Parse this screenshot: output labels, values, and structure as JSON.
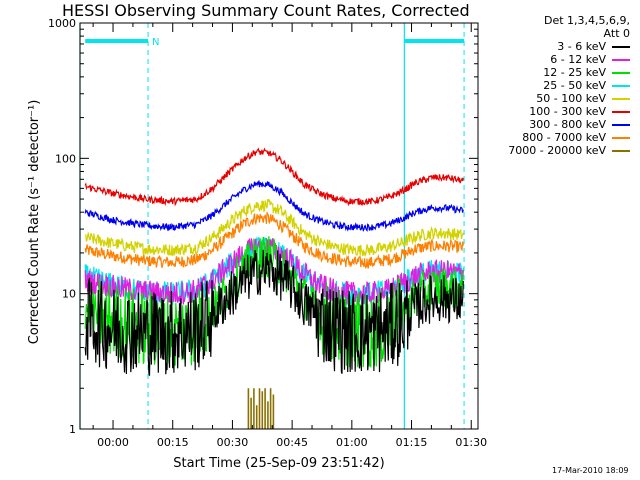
{
  "title": "HESSI Observing Summary Count Rates, Corrected",
  "timestamp": "17-Mar-2010 18:09",
  "legend": {
    "header_lines": [
      "Det 1,3,4,5,6,9,",
      "Att 0"
    ],
    "entries": [
      {
        "label": "3 - 6 keV",
        "color": "#000000"
      },
      {
        "label": "6 - 12 keV",
        "color": "#e020e0"
      },
      {
        "label": "12 - 25 keV",
        "color": "#00e000"
      },
      {
        "label": "25 - 50 keV",
        "color": "#00e5ee"
      },
      {
        "label": "50 - 100 keV",
        "color": "#d2d200"
      },
      {
        "label": "100 - 300 keV",
        "color": "#e80000"
      },
      {
        "label": "300 - 800 keV",
        "color": "#0000ee"
      },
      {
        "label": "800 - 7000 keV",
        "color": "#ff8000"
      },
      {
        "label": "7000 - 20000 keV",
        "color": "#8a7000"
      }
    ]
  },
  "chart_data": {
    "type": "line",
    "title": "HESSI Observing Summary Count Rates, Corrected",
    "xlabel": "Start Time (25-Sep-09 23:51:42)",
    "ylabel": "Corrected Count Rate (s⁻¹ detector⁻¹)",
    "y_scale": "log",
    "ylim": [
      1,
      1000
    ],
    "x_unit": "minutes after 00:00 (25-Sep-09 / 26-Sep-09)",
    "xlim": [
      -8.3,
      91.7
    ],
    "x_ticks": [
      {
        "value": 0,
        "label": "00:00"
      },
      {
        "value": 15,
        "label": "00:15"
      },
      {
        "value": 30,
        "label": "00:30"
      },
      {
        "value": 45,
        "label": "00:45"
      },
      {
        "value": 60,
        "label": "01:00"
      },
      {
        "value": 75,
        "label": "01:15"
      },
      {
        "value": 90,
        "label": "01:30"
      }
    ],
    "y_ticks": [
      {
        "value": 1,
        "label": "1"
      },
      {
        "value": 10,
        "label": "10"
      },
      {
        "value": 100,
        "label": "100"
      },
      {
        "value": 1000,
        "label": "1000"
      }
    ],
    "y_minor_ticks": true,
    "grid": false,
    "legend_position": "outside-right",
    "night_markers": {
      "color": "#00e5ee",
      "bars": [
        [
          -7.0,
          8.8
        ],
        [
          73.2,
          88.2
        ]
      ],
      "solid_lines": [
        -8.3,
        73.2
      ],
      "dashed_lines": [
        8.8,
        88.2
      ],
      "annotation": {
        "text": "N",
        "x": 10.8
      }
    },
    "series": [
      {
        "name": "3 - 6 keV",
        "color": "#000000",
        "x": [
          -7,
          0,
          8,
          15,
          21,
          25,
          29,
          33,
          36,
          39,
          42,
          45,
          48,
          52,
          56,
          60,
          65,
          69,
          73,
          76,
          80,
          84,
          88
        ],
        "values": [
          6.5,
          5.5,
          5.2,
          5.2,
          5.5,
          7,
          9.5,
          12.5,
          14.5,
          15,
          13.5,
          11,
          8.5,
          6.5,
          5.5,
          5.2,
          5.2,
          5.5,
          6.5,
          8,
          9.2,
          9.2,
          8.7
        ]
      },
      {
        "name": "6 - 12 keV",
        "color": "#e020e0",
        "x": [
          -7,
          0,
          8,
          15,
          21,
          25,
          29,
          33,
          36,
          39,
          42,
          45,
          48,
          52,
          56,
          60,
          65,
          69,
          73,
          76,
          80,
          84,
          88
        ],
        "values": [
          12.5,
          11.2,
          10.3,
          10,
          10.5,
          12.5,
          16,
          20,
          22,
          22,
          20,
          17,
          14,
          11.5,
          10.3,
          10,
          10,
          10.5,
          12,
          13.5,
          14.5,
          14.5,
          14
        ]
      },
      {
        "name": "12 - 25 keV",
        "color": "#00e000",
        "x": [
          -7,
          0,
          8,
          15,
          21,
          25,
          29,
          33,
          36,
          39,
          42,
          45,
          48,
          52,
          56,
          60,
          65,
          69,
          73,
          76,
          80,
          84,
          88
        ],
        "values": [
          7.8,
          6.3,
          5.5,
          5.3,
          5.7,
          7.5,
          11,
          15.5,
          18.5,
          19,
          16.5,
          13,
          9.5,
          7,
          5.8,
          5.4,
          5.3,
          5.7,
          7.5,
          9.5,
          11,
          11,
          10.5
        ]
      },
      {
        "name": "25 - 50 keV",
        "color": "#00e5ee",
        "x": [
          -7,
          0,
          8,
          15,
          21,
          25,
          29,
          33,
          36,
          39,
          42,
          45,
          48,
          52,
          56,
          60,
          65,
          69,
          73,
          76,
          80,
          84,
          88
        ],
        "values": [
          13.5,
          11.5,
          10.3,
          10,
          10.5,
          12.5,
          16,
          19.5,
          21.5,
          21.5,
          19.5,
          16.5,
          13.5,
          11.2,
          10.2,
          10,
          10,
          10.5,
          12,
          13.5,
          14.5,
          14.5,
          14
        ]
      },
      {
        "name": "50 - 100 keV",
        "color": "#d2d200",
        "x": [
          -7,
          0,
          8,
          15,
          21,
          25,
          29,
          33,
          36,
          39,
          42,
          45,
          48,
          52,
          56,
          60,
          65,
          69,
          73,
          76,
          80,
          84,
          88
        ],
        "values": [
          26,
          23.5,
          21.5,
          21,
          22,
          26,
          33,
          41,
          45,
          45,
          41,
          34,
          28,
          24,
          22,
          21,
          21,
          22,
          24,
          26.5,
          28,
          28,
          27
        ]
      },
      {
        "name": "100 - 300 keV",
        "color": "#e80000",
        "x": [
          -7,
          0,
          8,
          15,
          21,
          25,
          29,
          33,
          36,
          39,
          42,
          45,
          48,
          52,
          56,
          60,
          65,
          69,
          73,
          76,
          80,
          84,
          88
        ],
        "values": [
          62,
          55,
          50,
          48,
          50,
          60,
          78,
          100,
          112,
          110,
          98,
          80,
          64,
          55,
          50,
          48,
          48,
          51,
          58,
          66,
          72,
          72,
          68
        ]
      },
      {
        "name": "300 - 800 keV",
        "color": "#0000ee",
        "x": [
          -7,
          0,
          8,
          15,
          21,
          25,
          29,
          33,
          36,
          39,
          42,
          45,
          48,
          52,
          56,
          60,
          65,
          69,
          73,
          76,
          80,
          84,
          88
        ],
        "values": [
          40,
          35,
          32,
          31,
          32.5,
          38,
          48,
          59,
          65,
          64,
          57,
          47,
          39,
          34.5,
          32,
          31,
          31,
          32.5,
          36,
          40,
          43,
          43,
          41
        ]
      },
      {
        "name": "800 - 7000 keV",
        "color": "#ff8000",
        "x": [
          -7,
          0,
          8,
          15,
          21,
          25,
          29,
          33,
          36,
          39,
          42,
          45,
          48,
          52,
          56,
          60,
          65,
          69,
          73,
          76,
          80,
          84,
          88
        ],
        "values": [
          21,
          19,
          17.5,
          17,
          17.8,
          21,
          26.5,
          33,
          36.5,
          36,
          32.5,
          27,
          22.5,
          19.5,
          18,
          17,
          17,
          17.8,
          19.5,
          21.5,
          22.5,
          22.5,
          22
        ]
      },
      {
        "name": "7000 - 20000 keV",
        "color": "#8a7000",
        "x": [
          34,
          34.7,
          35.4,
          36.1,
          36.8,
          37.5,
          38.2,
          38.9,
          39.6,
          40.3
        ],
        "values": [
          2.0,
          1.7,
          2.0,
          1.5,
          2.0,
          1.9,
          2.0,
          1.6,
          2.0,
          1.8
        ]
      }
    ]
  }
}
